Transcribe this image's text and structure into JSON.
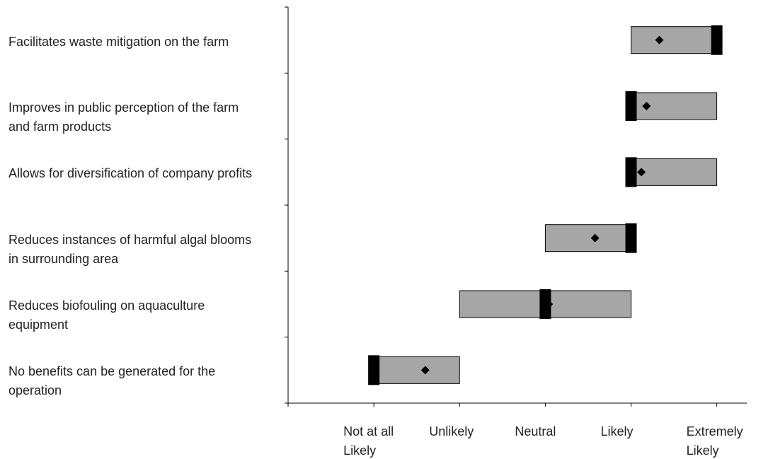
{
  "chart_data": {
    "type": "box",
    "categories": [
      "Facilitates waste mitigation on the farm",
      "Improves in public perception of the farm and farm products",
      "Allows for diversification of company profits",
      "Reduces instances of harmful algal blooms in surrounding area",
      "Reduces biofouling on aquaculture equipment",
      "No benefits can be generated for the operation"
    ],
    "q1": [
      4,
      4,
      4,
      3,
      2,
      1
    ],
    "q3": [
      5,
      5,
      5,
      4,
      4,
      2
    ],
    "median": [
      5,
      4,
      4,
      4,
      3,
      1
    ],
    "mean": [
      4.33,
      4.18,
      4.12,
      3.58,
      3.04,
      1.6
    ],
    "color": "#a6a6a6",
    "xlim": [
      0,
      5.35
    ],
    "xticks": [
      {
        "value": 1,
        "label": "Not at all Likely"
      },
      {
        "value": 2,
        "label": "Unlikely"
      },
      {
        "value": 3,
        "label": "Neutral"
      },
      {
        "value": 4,
        "label": "Likely"
      },
      {
        "value": 5,
        "label": "Extremely Likely"
      }
    ]
  }
}
